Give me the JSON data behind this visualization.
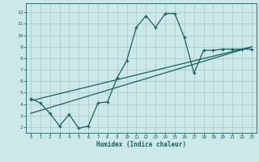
{
  "xlabel": "Humidex (Indice chaleur)",
  "bg_color": "#cde8e8",
  "grid_color": "#b0d0d0",
  "line_color": "#1a6060",
  "xlim": [
    -0.5,
    23.5
  ],
  "ylim": [
    1.5,
    12.8
  ],
  "xticks": [
    0,
    1,
    2,
    3,
    4,
    5,
    6,
    7,
    8,
    9,
    10,
    11,
    12,
    13,
    14,
    15,
    16,
    17,
    18,
    19,
    20,
    21,
    22,
    23
  ],
  "yticks": [
    2,
    3,
    4,
    5,
    6,
    7,
    8,
    9,
    10,
    11,
    12
  ],
  "series1_x": [
    0,
    1,
    2,
    3,
    4,
    5,
    6,
    7,
    8,
    9,
    10,
    11,
    12,
    13,
    14,
    15,
    16,
    17,
    18,
    19,
    20,
    21,
    22,
    23
  ],
  "series1_y": [
    4.5,
    4.1,
    3.2,
    2.1,
    3.1,
    1.9,
    2.1,
    4.1,
    4.2,
    6.3,
    7.8,
    10.7,
    11.7,
    10.7,
    11.9,
    11.9,
    9.8,
    6.7,
    8.7,
    8.7,
    8.8,
    8.8,
    8.8,
    8.8
  ],
  "series2_x": [
    0,
    23
  ],
  "series2_y": [
    4.3,
    9.0
  ],
  "series3_x": [
    0,
    23
  ],
  "series3_y": [
    3.2,
    9.0
  ]
}
